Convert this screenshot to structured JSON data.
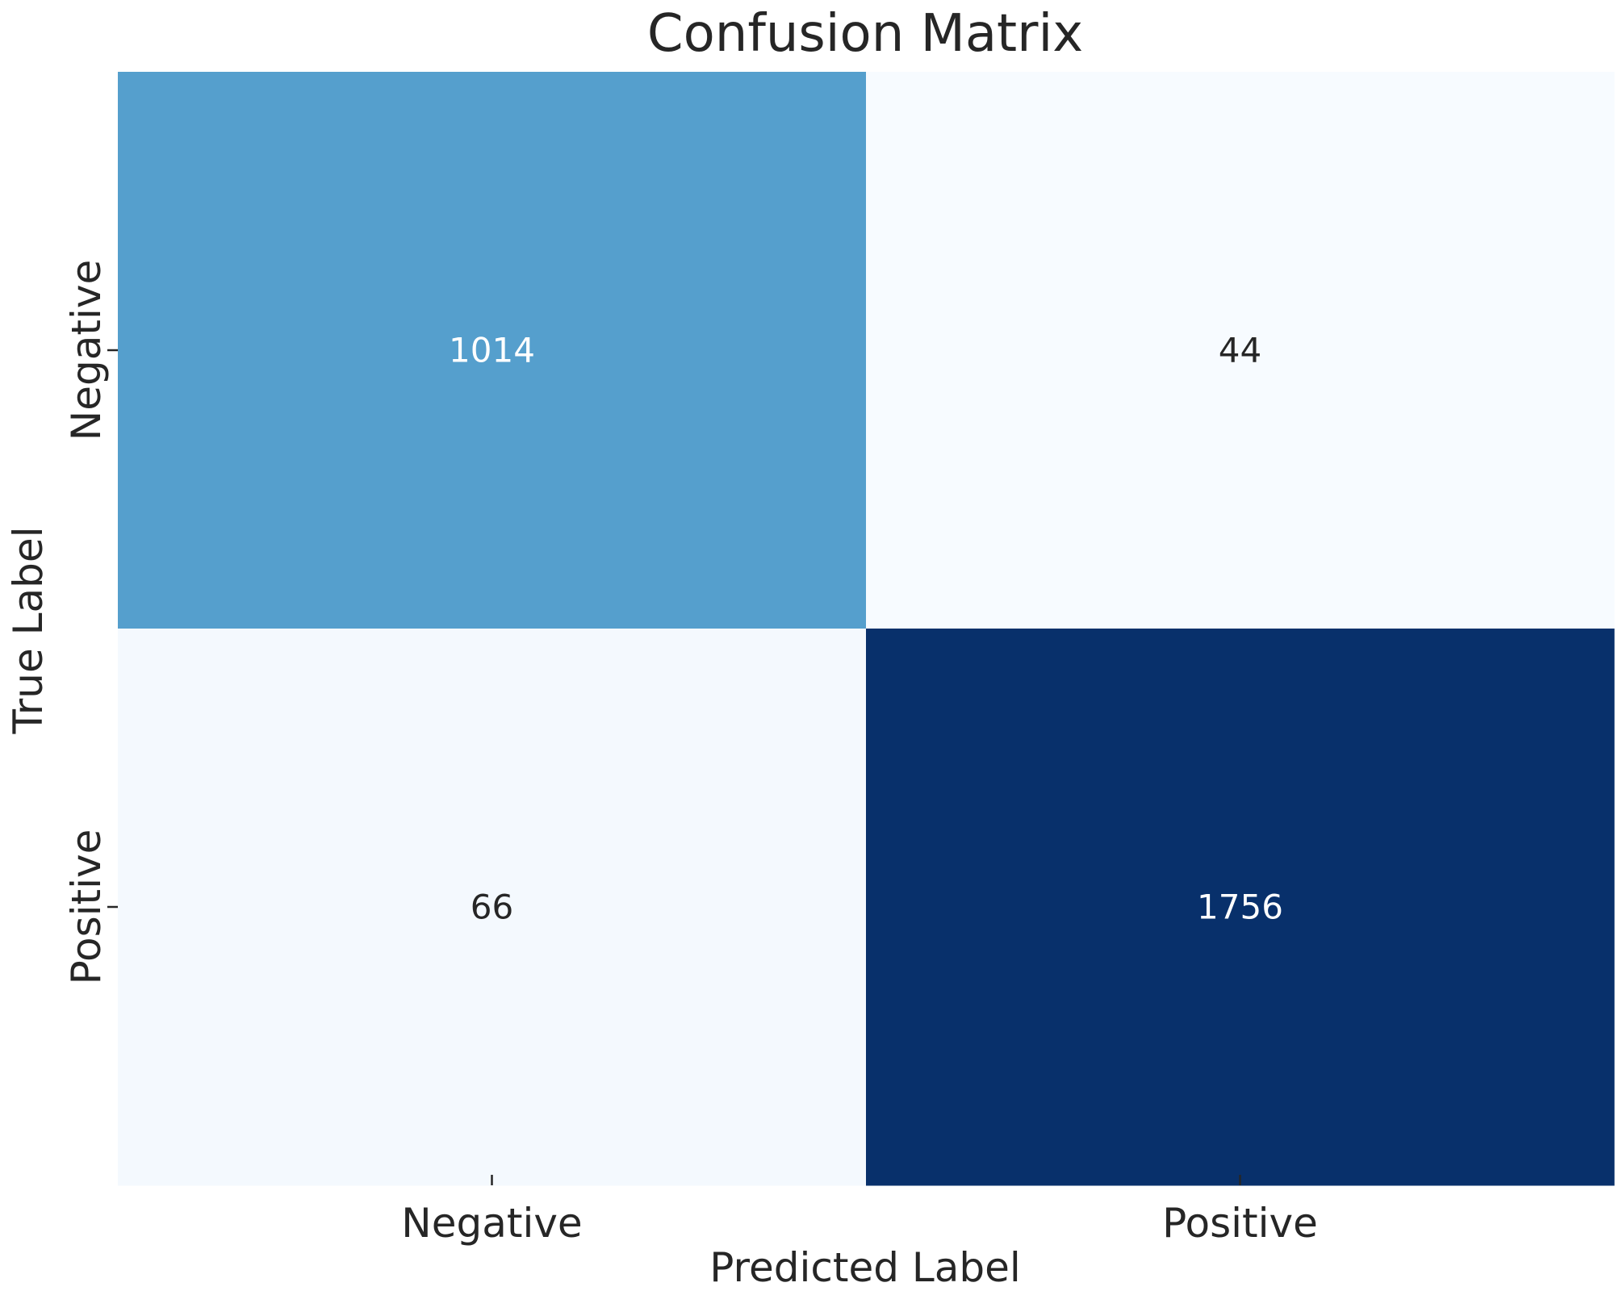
{
  "chart_data": {
    "type": "heatmap",
    "title": "Confusion Matrix",
    "xlabel": "Predicted Label",
    "ylabel": "True Label",
    "x_categories": [
      "Negative",
      "Positive"
    ],
    "y_categories": [
      "Negative",
      "Positive"
    ],
    "values": [
      [
        1014,
        44
      ],
      [
        66,
        1756
      ]
    ],
    "colormap": "Blues",
    "colors": {
      "low": "#f7fbff",
      "high": "#08306b",
      "text_dark": "#262626",
      "text_light": "#ffffff"
    },
    "colorbar": false,
    "grid": false
  }
}
